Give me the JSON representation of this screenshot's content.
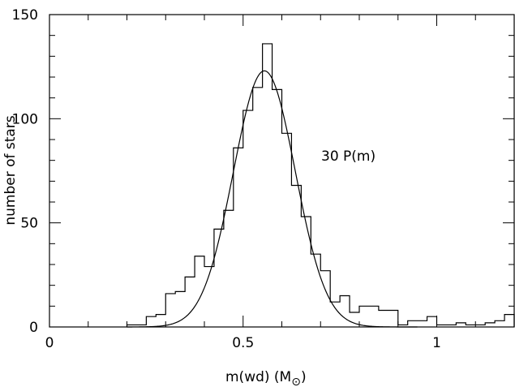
{
  "chart_data": {
    "type": "bar",
    "subtype": "histogram-with-curve",
    "title": "",
    "xlabel": "m(wd)  (M",
    "xlabel_subscript": "⊙",
    "xlabel_close": ")",
    "ylabel": "number of stars",
    "xlim": [
      0,
      1.2
    ],
    "ylim": [
      0,
      150
    ],
    "x_ticks": [
      0,
      0.5,
      1
    ],
    "x_tick_labels": [
      "0",
      "0.5",
      "1"
    ],
    "y_ticks": [
      0,
      50,
      100,
      150
    ],
    "y_tick_labels": [
      "0",
      "50",
      "100",
      "150"
    ],
    "annotation": "30 P(m)",
    "grid": false,
    "bin_width": 0.025,
    "histogram": {
      "bin_start": [
        0.2,
        0.225,
        0.25,
        0.275,
        0.3,
        0.325,
        0.35,
        0.375,
        0.4,
        0.425,
        0.45,
        0.475,
        0.5,
        0.525,
        0.55,
        0.575,
        0.6,
        0.625,
        0.65,
        0.675,
        0.7,
        0.725,
        0.75,
        0.775,
        0.8,
        0.825,
        0.85,
        0.875,
        0.9,
        0.925,
        0.95,
        0.975,
        1.0,
        1.025,
        1.05,
        1.075,
        1.1,
        1.125,
        1.15,
        1.175
      ],
      "counts": [
        1,
        1,
        5,
        6,
        16,
        17,
        24,
        34,
        29,
        47,
        56,
        86,
        104,
        115,
        136,
        114,
        93,
        68,
        53,
        35,
        27,
        12,
        15,
        7,
        10,
        10,
        8,
        8,
        1,
        3,
        3,
        5,
        1,
        1,
        2,
        1,
        1,
        2,
        3,
        6
      ]
    },
    "curve": {
      "name": "30 P(m)",
      "mean": 0.555,
      "sigma": 0.08,
      "peak": 123,
      "x_range": [
        0.2,
        0.95
      ]
    }
  }
}
